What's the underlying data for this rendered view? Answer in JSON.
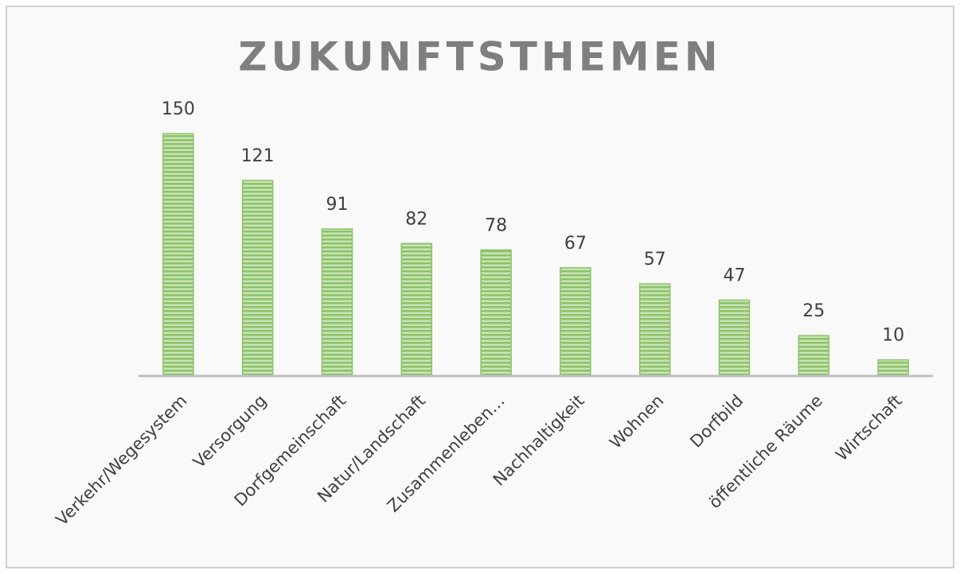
{
  "chart_data": {
    "type": "bar",
    "title": "ZUKUNFTSTHEMEN",
    "categories": [
      "Verkehr/Wegesystem",
      "Versorgung",
      "Dorfgemeinschaft",
      "Natur/Landschaft",
      "Zusammenleben…",
      "Nachhaltigkeit",
      "Wohnen",
      "Dorfbild",
      "öffentliche Räume",
      "Wirtschaft"
    ],
    "values": [
      150,
      121,
      91,
      82,
      78,
      67,
      57,
      47,
      25,
      10
    ],
    "color": "#8cc26a"
  }
}
